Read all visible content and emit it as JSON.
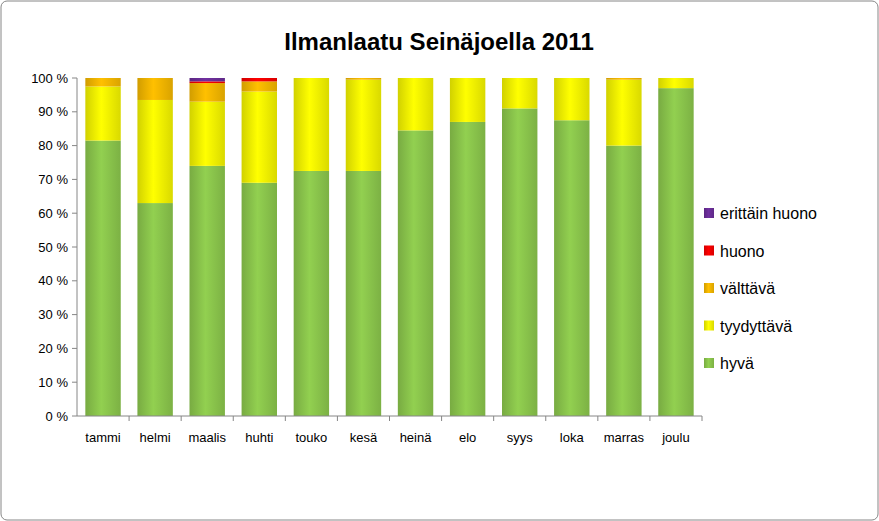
{
  "chart_data": {
    "type": "bar",
    "title": "Ilmanlaatu Seinäjoella 2011",
    "stacked": true,
    "grid": false,
    "legend": "right",
    "categories": [
      "tammi",
      "helmi",
      "maalis",
      "huhti",
      "touko",
      "kesä",
      "heinä",
      "elo",
      "syys",
      "loka",
      "marras",
      "joulu"
    ],
    "series": [
      {
        "name": "hyvä",
        "color": "#92d050",
        "values": [
          81.5,
          63,
          74,
          69,
          72.5,
          72.5,
          84.5,
          87,
          91,
          87.5,
          80,
          97
        ]
      },
      {
        "name": "tyydyttävä",
        "color": "#ffff00",
        "values": [
          16,
          30.5,
          19,
          27,
          27.5,
          27,
          15.5,
          13,
          9,
          12.5,
          19.5,
          3
        ]
      },
      {
        "name": "välttävä",
        "color": "#ffc000",
        "values": [
          2.5,
          6.5,
          5.5,
          3,
          0,
          0.5,
          0,
          0,
          0,
          0,
          0.5,
          0
        ]
      },
      {
        "name": "huono",
        "color": "#ff0000",
        "values": [
          0,
          0,
          0.5,
          1,
          0,
          0,
          0,
          0,
          0,
          0,
          0,
          0
        ]
      },
      {
        "name": "erittäin huono",
        "color": "#7030a0",
        "values": [
          0,
          0,
          1,
          0,
          0,
          0,
          0,
          0,
          0,
          0,
          0,
          0
        ]
      }
    ],
    "ylim": [
      0,
      100
    ],
    "yticks": [
      {
        "value": 0,
        "label": "0 %"
      },
      {
        "value": 10,
        "label": "10 %"
      },
      {
        "value": 20,
        "label": "20 %"
      },
      {
        "value": 30,
        "label": "30 %"
      },
      {
        "value": 40,
        "label": "40 %"
      },
      {
        "value": 50,
        "label": "50 %"
      },
      {
        "value": 60,
        "label": "60 %"
      },
      {
        "value": 70,
        "label": "70 %"
      },
      {
        "value": 80,
        "label": "80 %"
      },
      {
        "value": 90,
        "label": "90 %"
      },
      {
        "value": 100,
        "label": "100 %"
      }
    ]
  }
}
